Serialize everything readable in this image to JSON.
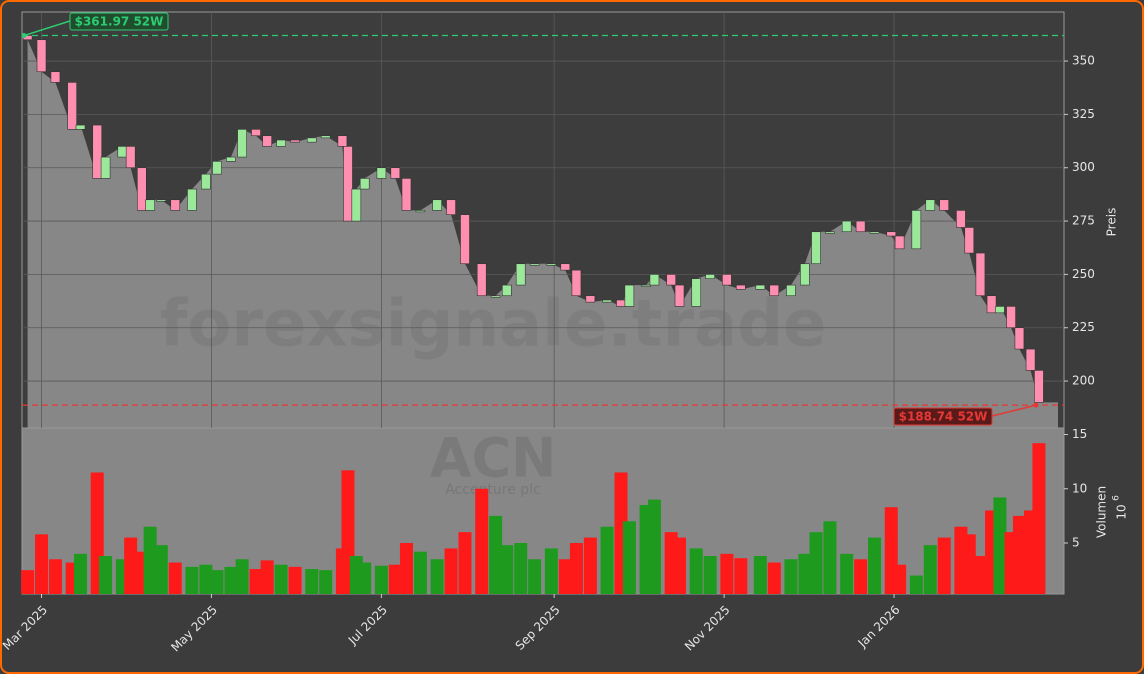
{
  "chart_data": {
    "type": "candlestick",
    "watermark": "forexsignale.trade",
    "ticker": "ACN",
    "company": "Accenture plc",
    "ylabel": "Preis",
    "y2label": "Volumen",
    "volume_scale": {
      "base": "10",
      "exponent": "6"
    },
    "x": [
      -5,
      0,
      5,
      11,
      14,
      20,
      23,
      29,
      32,
      36,
      39,
      43,
      48,
      54,
      59,
      63,
      68,
      72,
      77,
      81,
      86,
      91,
      97,
      102,
      108,
      110,
      113,
      116,
      122,
      127,
      131,
      136,
      142,
      147,
      152,
      158,
      163,
      167,
      172,
      177,
      183,
      188,
      192,
      197,
      203,
      208,
      211,
      217,
      220,
      226,
      229,
      235,
      240,
      246,
      251,
      258,
      263,
      269,
      274,
      278,
      283,
      289,
      294,
      299,
      305,
      308,
      314,
      319,
      324,
      330,
      333,
      337,
      341,
      344,
      348,
      351,
      355,
      358
    ],
    "open": [
      362,
      360,
      345,
      340,
      318,
      320,
      295,
      305,
      310,
      300,
      280,
      285,
      285,
      280,
      290,
      297,
      303,
      305,
      318,
      315,
      310,
      313,
      312,
      314,
      315,
      310,
      275,
      290,
      295,
      300,
      295,
      280,
      280,
      285,
      278,
      255,
      240,
      240,
      245,
      255,
      255,
      255,
      252,
      240,
      237,
      238,
      235,
      245,
      245,
      250,
      245,
      235,
      248,
      250,
      245,
      243,
      245,
      240,
      245,
      255,
      270,
      270,
      275,
      270,
      270,
      268,
      262,
      280,
      285,
      280,
      272,
      260,
      240,
      232,
      235,
      225,
      215,
      205
    ],
    "close": [
      360,
      345,
      340,
      318,
      320,
      295,
      305,
      310,
      300,
      280,
      285,
      285,
      280,
      290,
      297,
      303,
      305,
      318,
      315,
      310,
      313,
      312,
      314,
      315,
      310,
      275,
      290,
      295,
      300,
      295,
      280,
      280,
      285,
      278,
      255,
      240,
      240,
      245,
      255,
      255,
      255,
      252,
      240,
      237,
      238,
      235,
      245,
      245,
      250,
      245,
      235,
      248,
      250,
      245,
      243,
      245,
      240,
      245,
      255,
      270,
      270,
      275,
      270,
      270,
      268,
      262,
      280,
      285,
      280,
      272,
      260,
      240,
      232,
      235,
      225,
      215,
      205,
      190
    ],
    "volume": [
      2.5,
      5.8,
      3.5,
      3.2,
      4.0,
      11.5,
      3.8,
      3.5,
      5.5,
      4.2,
      6.5,
      4.8,
      3.2,
      2.8,
      3.0,
      2.5,
      2.8,
      3.5,
      2.6,
      3.4,
      3.0,
      2.8,
      2.6,
      2.5,
      4.5,
      11.7,
      3.8,
      3.2,
      2.9,
      3.0,
      5.0,
      4.2,
      3.5,
      4.5,
      6.0,
      10.0,
      7.5,
      4.8,
      5.0,
      3.5,
      4.5,
      3.5,
      5.0,
      5.5,
      6.5,
      11.5,
      7.0,
      8.5,
      9.0,
      6.0,
      5.5,
      4.5,
      3.8,
      4.0,
      3.6,
      3.8,
      3.2,
      3.5,
      4.0,
      6.0,
      7.0,
      4.0,
      3.5,
      5.5,
      8.3,
      3.0,
      2.0,
      4.8,
      5.5,
      6.5,
      5.8,
      3.8,
      8.0,
      9.2,
      6.0,
      7.5,
      8.0,
      14.2
    ],
    "up_color": "#1e9a1e",
    "down_color": "#ff1a1a",
    "candle_up_color": "#9be89b",
    "candle_down_color": "#ff8fb0",
    "area_color": "#878787",
    "xlim": [
      -7,
      367
    ],
    "xticks": [
      {
        "value": 0,
        "label": "Mar 2025"
      },
      {
        "value": 61,
        "label": "May 2025"
      },
      {
        "value": 122,
        "label": "Jul 2025"
      },
      {
        "value": 184,
        "label": "Sep 2025"
      },
      {
        "value": 245,
        "label": "Nov 2025"
      },
      {
        "value": 306,
        "label": "Jan 2026"
      }
    ],
    "ylim": [
      178,
      373
    ],
    "yticks": [
      200,
      225,
      250,
      275,
      300,
      325,
      350
    ],
    "y2lim": [
      0.3,
      15.6
    ],
    "y2ticks": [
      5,
      10,
      15
    ],
    "grid": true,
    "high_52w": {
      "value": 361.97,
      "label": "$361.97 52W",
      "color": "#2ecc71"
    },
    "low_52w": {
      "value": 188.74,
      "label": "$188.74 52W",
      "color": "#e53935"
    }
  }
}
